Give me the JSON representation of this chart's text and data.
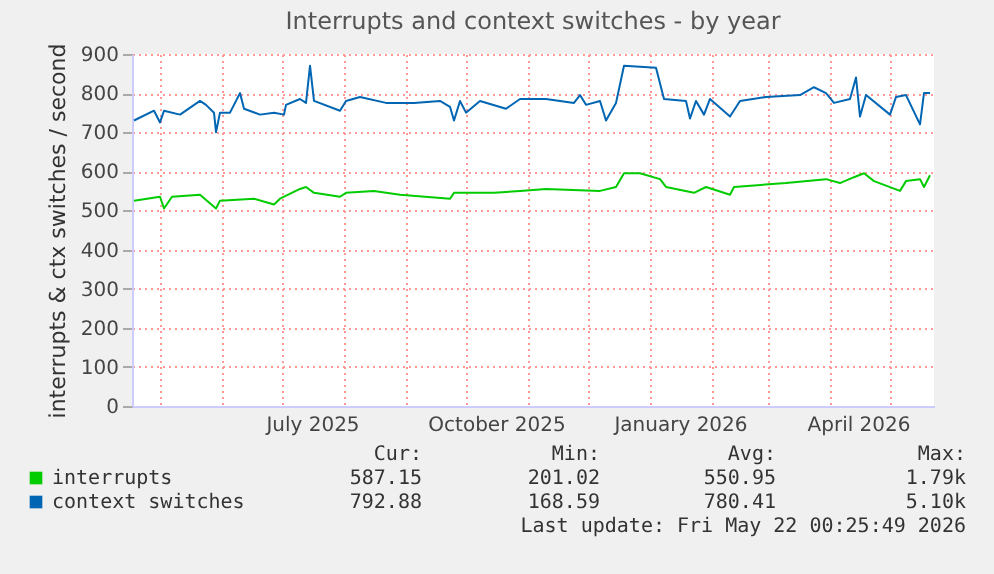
{
  "chart_data": {
    "type": "line",
    "title": "Interrupts and context switches - by year",
    "ylabel": "interrupts & ctx switches / second",
    "xlim": [
      "2025-04-17",
      "2026-05-23"
    ],
    "ylim": [
      0,
      900
    ],
    "yticks": [
      0,
      100,
      200,
      300,
      400,
      500,
      600,
      700,
      800,
      900
    ],
    "xticks": [
      {
        "value": "2025-05-01",
        "label": null
      },
      {
        "value": "2025-06-01",
        "label": null
      },
      {
        "value": "2025-07-01",
        "label": null
      },
      {
        "value": "2025-07-16",
        "label": "July 2025"
      },
      {
        "value": "2025-08-01",
        "label": null
      },
      {
        "value": "2025-09-01",
        "label": null
      },
      {
        "value": "2025-10-01",
        "label": null
      },
      {
        "value": "2025-10-16",
        "label": "October 2025"
      },
      {
        "value": "2025-11-01",
        "label": null
      },
      {
        "value": "2025-12-01",
        "label": null
      },
      {
        "value": "2026-01-01",
        "label": null
      },
      {
        "value": "2026-01-16",
        "label": "January 2026"
      },
      {
        "value": "2026-02-01",
        "label": null
      },
      {
        "value": "2026-03-01",
        "label": null
      },
      {
        "value": "2026-04-01",
        "label": null
      },
      {
        "value": "2026-04-15",
        "label": "April 2026"
      },
      {
        "value": "2026-05-01",
        "label": null
      }
    ],
    "grid": true,
    "legend": "bottom",
    "line_style": "solid",
    "marker": "none",
    "series": [
      {
        "name": "interrupts",
        "color": "#00cc00",
        "x": [
          "2025-04-18",
          "2025-05-01",
          "2025-05-03",
          "2025-05-07",
          "2025-05-21",
          "2025-05-29",
          "2025-05-31",
          "2025-06-17",
          "2025-06-27",
          "2025-06-30",
          "2025-07-10",
          "2025-07-13",
          "2025-07-17",
          "2025-07-30",
          "2025-08-02",
          "2025-08-16",
          "2025-08-29",
          "2025-09-23",
          "2025-09-25",
          "2025-10-15",
          "2025-10-28",
          "2025-11-10",
          "2025-12-07",
          "2025-12-15",
          "2025-12-19",
          "2025-12-27",
          "2026-01-06",
          "2026-01-09",
          "2026-01-23",
          "2026-01-29",
          "2026-02-10",
          "2026-02-12",
          "2026-03-10",
          "2026-03-30",
          "2026-04-06",
          "2026-04-13",
          "2026-04-18",
          "2026-04-23",
          "2026-05-06",
          "2026-05-09",
          "2026-05-16",
          "2026-05-18",
          "2026-05-21"
        ],
        "values": [
          525,
          535,
          505,
          535,
          540,
          505,
          525,
          530,
          515,
          530,
          555,
          560,
          545,
          535,
          545,
          550,
          540,
          530,
          545,
          545,
          550,
          555,
          550,
          560,
          595,
          595,
          580,
          560,
          545,
          560,
          540,
          560,
          570,
          580,
          570,
          585,
          595,
          575,
          550,
          575,
          580,
          560,
          590
        ]
      },
      {
        "name": "context switches",
        "color": "#0066b3",
        "x": [
          "2025-04-18",
          "2025-04-28",
          "2025-05-01",
          "2025-05-03",
          "2025-05-11",
          "2025-05-21",
          "2025-05-24",
          "2025-05-28",
          "2025-05-29",
          "2025-05-31",
          "2025-06-05",
          "2025-06-10",
          "2025-06-12",
          "2025-06-20",
          "2025-06-27",
          "2025-07-02",
          "2025-07-03",
          "2025-07-10",
          "2025-07-13",
          "2025-07-15",
          "2025-07-17",
          "2025-07-30",
          "2025-08-02",
          "2025-08-09",
          "2025-08-22",
          "2025-09-05",
          "2025-09-18",
          "2025-09-23",
          "2025-09-25",
          "2025-09-28",
          "2025-10-01",
          "2025-10-08",
          "2025-10-21",
          "2025-10-28",
          "2025-11-10",
          "2025-11-24",
          "2025-11-27",
          "2025-11-30",
          "2025-12-07",
          "2025-12-10",
          "2025-12-15",
          "2025-12-19",
          "2026-01-04",
          "2026-01-08",
          "2026-01-19",
          "2026-01-21",
          "2026-01-24",
          "2026-01-28",
          "2026-01-31",
          "2026-02-10",
          "2026-02-15",
          "2026-02-28",
          "2026-03-17",
          "2026-03-24",
          "2026-03-30",
          "2026-04-03",
          "2026-04-11",
          "2026-04-14",
          "2026-04-16",
          "2026-04-19",
          "2026-05-01",
          "2026-05-04",
          "2026-05-09",
          "2026-05-16",
          "2026-05-18",
          "2026-05-21"
        ],
        "values": [
          730,
          755,
          725,
          755,
          745,
          780,
          770,
          750,
          700,
          750,
          750,
          800,
          760,
          745,
          750,
          745,
          770,
          785,
          775,
          870,
          780,
          755,
          780,
          790,
          775,
          775,
          780,
          765,
          730,
          780,
          750,
          780,
          760,
          785,
          785,
          775,
          795,
          770,
          780,
          730,
          775,
          870,
          865,
          785,
          780,
          735,
          780,
          745,
          785,
          740,
          780,
          790,
          795,
          815,
          800,
          775,
          785,
          840,
          740,
          795,
          745,
          790,
          795,
          720,
          800,
          800
        ]
      }
    ],
    "annotations": [
      "Cur:",
      "Min:",
      "Avg:",
      "Max:",
      "587.15",
      "201.02",
      "550.95",
      "1.79k",
      "792.88",
      "168.59",
      "780.41",
      "5.10k",
      "Last update: Fri May 22 00:25:49 2026"
    ]
  }
}
